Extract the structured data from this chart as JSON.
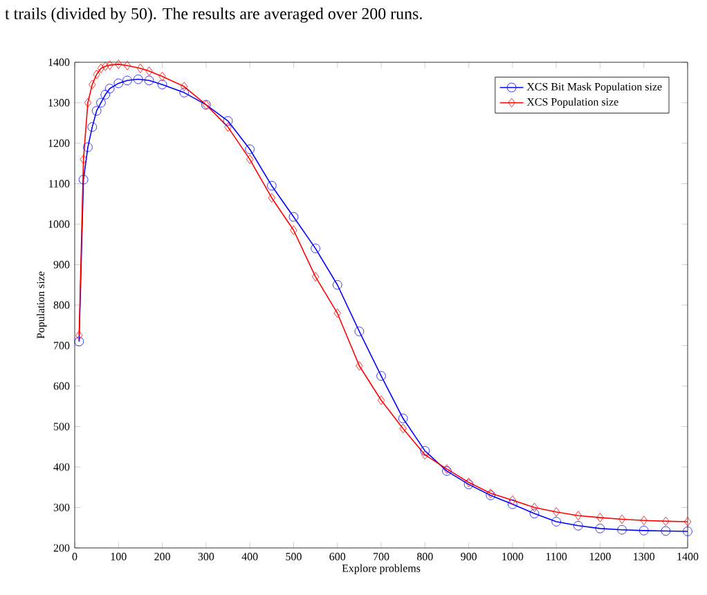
{
  "chart_data": {
    "type": "line",
    "xlabel": "Explore problems",
    "ylabel": "Population size",
    "annotations": [
      "t trails (divided by 50). The results are averaged over 200 runs."
    ],
    "xlim": [
      0,
      1400
    ],
    "xticks": [
      0,
      100,
      200,
      300,
      400,
      500,
      600,
      700,
      800,
      900,
      1000,
      1100,
      1200,
      1300,
      1400
    ],
    "ylim": [
      200,
      1400
    ],
    "yticks": [
      200,
      300,
      400,
      500,
      600,
      700,
      800,
      900,
      1000,
      1100,
      1200,
      1300,
      1400
    ],
    "legend": "top right",
    "grid": false,
    "line_style": "solid",
    "series": [
      {
        "name": "XCS Bit Mask Population size",
        "color": "#0000ff",
        "marker": "circle",
        "x": [
          10,
          20,
          30,
          40,
          50,
          60,
          70,
          80,
          100,
          120,
          145,
          170,
          200,
          250,
          300,
          350,
          400,
          450,
          500,
          550,
          600,
          650,
          700,
          750,
          800,
          850,
          900,
          950,
          1000,
          1050,
          1100,
          1150,
          1200,
          1250,
          1300,
          1350,
          1400
        ],
        "values": [
          710,
          1110,
          1190,
          1240,
          1280,
          1300,
          1320,
          1335,
          1348,
          1355,
          1358,
          1355,
          1345,
          1325,
          1295,
          1255,
          1185,
          1095,
          1018,
          940,
          850,
          735,
          625,
          520,
          440,
          390,
          357,
          330,
          308,
          285,
          265,
          255,
          248,
          245,
          243,
          242,
          241
        ]
      },
      {
        "name": "XCS Population size",
        "color": "#ff0000",
        "marker": "diamond",
        "x": [
          10,
          20,
          30,
          40,
          50,
          60,
          70,
          80,
          100,
          120,
          150,
          170,
          200,
          250,
          300,
          350,
          400,
          450,
          500,
          550,
          600,
          650,
          700,
          750,
          800,
          850,
          900,
          950,
          1000,
          1050,
          1100,
          1150,
          1200,
          1250,
          1300,
          1350,
          1400
        ],
        "values": [
          725,
          1160,
          1300,
          1345,
          1370,
          1385,
          1390,
          1393,
          1395,
          1392,
          1385,
          1378,
          1365,
          1340,
          1295,
          1240,
          1160,
          1065,
          985,
          870,
          780,
          650,
          565,
          495,
          430,
          395,
          362,
          335,
          318,
          300,
          289,
          280,
          275,
          271,
          268,
          266,
          265
        ]
      }
    ]
  }
}
